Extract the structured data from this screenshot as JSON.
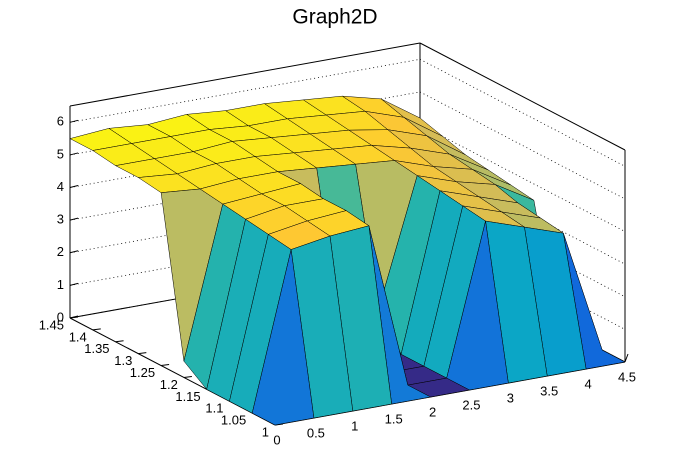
{
  "chart_data": {
    "type": "surface",
    "title": "Graph2D",
    "x": [
      0,
      0.5,
      1,
      1.5,
      2,
      2.5,
      3,
      3.5,
      4,
      4.5
    ],
    "y": [
      1,
      1.05,
      1.1,
      1.15,
      1.2,
      1.25,
      1.3,
      1.35,
      1.4,
      1.45
    ],
    "z": [
      [
        0,
        0,
        0,
        0,
        0,
        0,
        0,
        0,
        0,
        0
      ],
      [
        0,
        4.8,
        5.0,
        5.1,
        0,
        0,
        4.6,
        4.2,
        3.8,
        0
      ],
      [
        0,
        4.9,
        5.1,
        5.2,
        0,
        0,
        4.7,
        4.3,
        3.9,
        0
      ],
      [
        0,
        5.0,
        5.2,
        5.2,
        0,
        0,
        4.8,
        4.4,
        4.0,
        0
      ],
      [
        0.5,
        5.1,
        5.2,
        5.3,
        0.8,
        1.0,
        4.9,
        4.5,
        4.2,
        3.5
      ],
      [
        5.3,
        5.2,
        5.3,
        5.3,
        5.2,
        5.1,
        5.0,
        4.6,
        4.3,
        3.6
      ],
      [
        5.4,
        5.3,
        5.4,
        5.4,
        5.3,
        5.2,
        5.1,
        4.8,
        4.4,
        3.7
      ],
      [
        5.4,
        5.4,
        5.4,
        5.5,
        5.4,
        5.3,
        5.2,
        5.0,
        4.6,
        3.8
      ],
      [
        5.5,
        5.5,
        5.5,
        5.5,
        5.4,
        5.4,
        5.3,
        5.2,
        4.8,
        4.0
      ],
      [
        5.5,
        5.6,
        5.5,
        5.6,
        5.5,
        5.5,
        5.4,
        5.3,
        5.0,
        4.2
      ]
    ],
    "xlim": [
      0,
      4.5
    ],
    "ylim": [
      1,
      1.45
    ],
    "zlim": [
      0,
      6.5
    ],
    "xticks": [
      0,
      0.5,
      1,
      1.5,
      2,
      2.5,
      3,
      3.5,
      4,
      4.5
    ],
    "yticks": [
      1,
      1.05,
      1.1,
      1.15,
      1.2,
      1.25,
      1.3,
      1.35,
      1.4,
      1.45
    ],
    "zticks": [
      0,
      1,
      2,
      3,
      4,
      5,
      6
    ],
    "palette": [
      "#352a87",
      "#0f5cdd",
      "#1481d6",
      "#06a4ca",
      "#2eb7a4",
      "#87bf77",
      "#d1bb59",
      "#fec832",
      "#f9fb0e"
    ],
    "grid": true
  }
}
